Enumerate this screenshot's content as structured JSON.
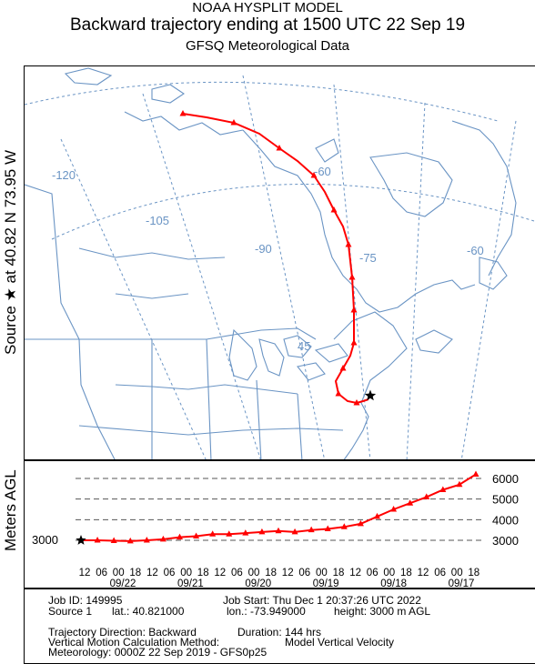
{
  "title": {
    "line1": "NOAA HYSPLIT MODEL",
    "line2": "Backward trajectory ending at 1500 UTC 22 Sep 19",
    "line3": "GFSQ Meteorological Data"
  },
  "source_label": "Source ★ at   40.82 N   73.95 W",
  "map": {
    "longitude_labels": [
      "-120",
      "-105",
      "-90",
      "-75",
      "-60",
      "-60"
    ],
    "latitude_labels": [
      "45"
    ],
    "trajectory_color": "#ff0000",
    "map_line_color": "#6a94c4",
    "grid_color": "#6a94c4"
  },
  "height_axis": {
    "ylabel": "Meters AGL",
    "start_value_label": "3000",
    "tick_labels": [
      "6000",
      "5000",
      "4000",
      "3000"
    ],
    "hour_labels": [
      "12",
      "06",
      "00",
      "18",
      "12",
      "06",
      "00",
      "18",
      "12",
      "06",
      "00",
      "18",
      "12",
      "06",
      "00",
      "18",
      "12",
      "06",
      "00",
      "18",
      "12",
      "06",
      "00",
      "18"
    ],
    "date_labels": [
      "09/22",
      "09/21",
      "09/20",
      "09/19",
      "09/18",
      "09/17"
    ]
  },
  "info": {
    "job_id": "Job ID: 149995",
    "job_start": "Job Start: Thu Dec  1 20:37:26 UTC 2022",
    "source": "Source 1",
    "lat": "lat.: 40.821000",
    "lon": "lon.: -73.949000",
    "height": "height: 3000 m AGL",
    "direction": "Trajectory Direction: Backward",
    "duration": "Duration: 144 hrs",
    "vertical_label": "Vertical Motion Calculation Method:",
    "vertical_value": "Model Vertical Velocity",
    "meteorology": "Meteorology: 0000Z 22 Sep 2019 - GFS0p25"
  },
  "chart_data": {
    "type": "line",
    "title": "Backward trajectory ending at 1500 UTC 22 Sep 19",
    "xlabel": "",
    "ylabel": "Meters AGL",
    "x_direction": "reversed (hours back from 1500 UTC 22 Sep)",
    "ylim": [
      2700,
      6400
    ],
    "series": [
      {
        "x_hours_back": [
          0,
          6,
          12,
          18,
          24,
          30,
          36,
          42,
          48,
          54,
          60,
          66,
          72,
          78,
          84,
          90,
          96,
          102,
          108,
          114,
          120,
          126,
          132,
          138,
          144
        ],
        "values": [
          3000,
          3000,
          2980,
          2960,
          3000,
          3050,
          3150,
          3200,
          3300,
          3300,
          3350,
          3400,
          3450,
          3400,
          3500,
          3550,
          3650,
          3800,
          4150,
          4500,
          4800,
          5100,
          5450,
          5700,
          6200
        ]
      }
    ]
  }
}
